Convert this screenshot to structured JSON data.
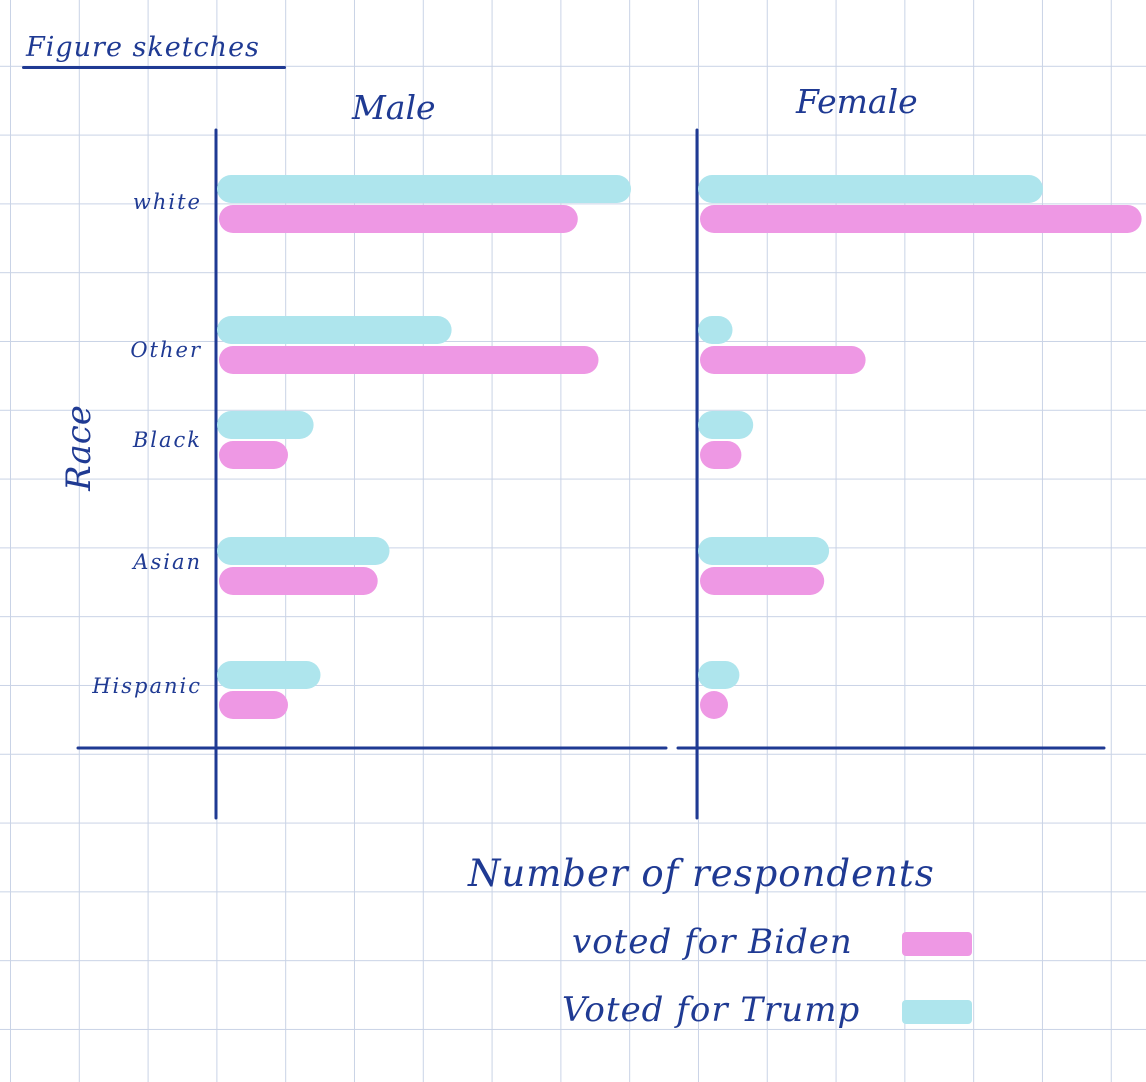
{
  "header": {
    "title": "Figure sketches"
  },
  "colors": {
    "ink": "#1f3a93",
    "biden": "#ee98e4",
    "trump": "#aee5ed"
  },
  "chart_data": {
    "type": "bar",
    "orientation": "horizontal",
    "panels": [
      {
        "title": "Male",
        "categories": [
          "white",
          "Other",
          "Black",
          "Asian",
          "Hispanic"
        ],
        "series": [
          {
            "name": "Voted for Trump",
            "values": [
              6.0,
              3.4,
              1.4,
              2.5,
              1.5
            ]
          },
          {
            "name": "voted for Biden",
            "values": [
              5.2,
              5.5,
              1.0,
              2.3,
              1.0
            ]
          }
        ]
      },
      {
        "title": "Female",
        "categories": [
          "white",
          "Other",
          "Black",
          "Asian",
          "Hispanic"
        ],
        "series": [
          {
            "name": "Voted for Trump",
            "values": [
              5.0,
              0.5,
              0.8,
              1.9,
              0.6
            ]
          },
          {
            "name": "voted for Biden",
            "values": [
              6.4,
              2.4,
              0.6,
              1.8,
              0.4
            ]
          }
        ]
      }
    ],
    "xlabel": "Number of respondents",
    "ylabel": "Race",
    "legend": [
      {
        "label": "voted for Biden",
        "color": "#ee98e4"
      },
      {
        "label": "Voted for Trump",
        "color": "#aee5ed"
      }
    ],
    "legend_position": "bottom-right",
    "grid": true
  }
}
